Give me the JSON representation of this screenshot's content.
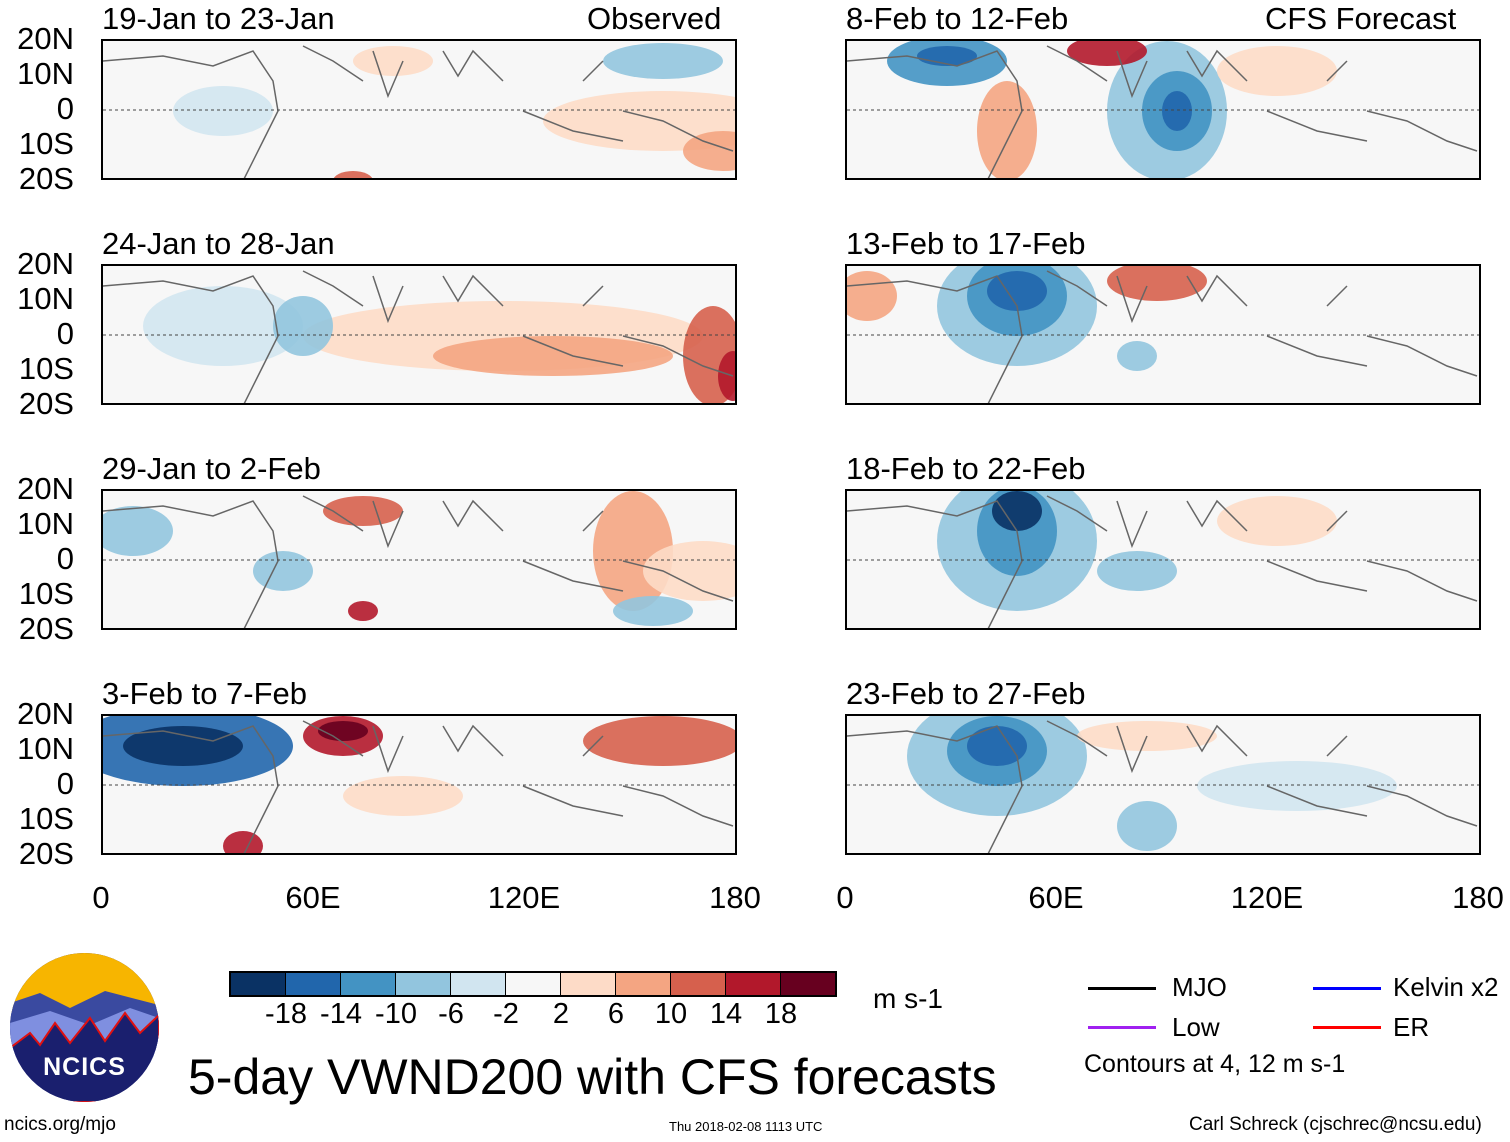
{
  "header": {
    "left_label": "Observed",
    "right_label": "CFS Forecast"
  },
  "panels_observed": [
    {
      "title": "19-Jan to 23-Jan"
    },
    {
      "title": "24-Jan to 28-Jan"
    },
    {
      "title": "29-Jan to 2-Feb"
    },
    {
      "title": "3-Feb to 7-Feb"
    }
  ],
  "panels_forecast": [
    {
      "title": "8-Feb to 12-Feb"
    },
    {
      "title": "13-Feb to 17-Feb"
    },
    {
      "title": "18-Feb to 22-Feb"
    },
    {
      "title": "23-Feb to 27-Feb"
    }
  ],
  "lat_labels": [
    "20N",
    "10N",
    "0",
    "10S",
    "20S"
  ],
  "lon_labels": [
    "0",
    "60E",
    "120E",
    "180"
  ],
  "colorbar": {
    "ticks": [
      "-18",
      "-14",
      "-10",
      "-6",
      "-2",
      "2",
      "6",
      "10",
      "14",
      "18"
    ],
    "colors": [
      "#0a3264",
      "#2166ac",
      "#4393c3",
      "#92c5de",
      "#d1e5f0",
      "#f7f7f7",
      "#fddbc7",
      "#f4a582",
      "#d6604d",
      "#b2182b",
      "#67001f"
    ],
    "units": "m s-1"
  },
  "legend": {
    "items": [
      {
        "label": "MJO",
        "color": "#000000"
      },
      {
        "label": "Kelvin x2",
        "color": "#0000ff"
      },
      {
        "label": "Low",
        "color": "#a020f0"
      },
      {
        "label": "ER",
        "color": "#ff0000"
      }
    ],
    "contours_note": "Contours at 4, 12 m s-1"
  },
  "title": "5-day VWND200 with CFS forecasts",
  "logo_text": "NCICS",
  "footer": {
    "url": "ncics.org/mjo",
    "timestamp": "Thu 2018-02-08 1113 UTC",
    "credit": "Carl Schreck (cjschrec@ncsu.edu)"
  }
}
